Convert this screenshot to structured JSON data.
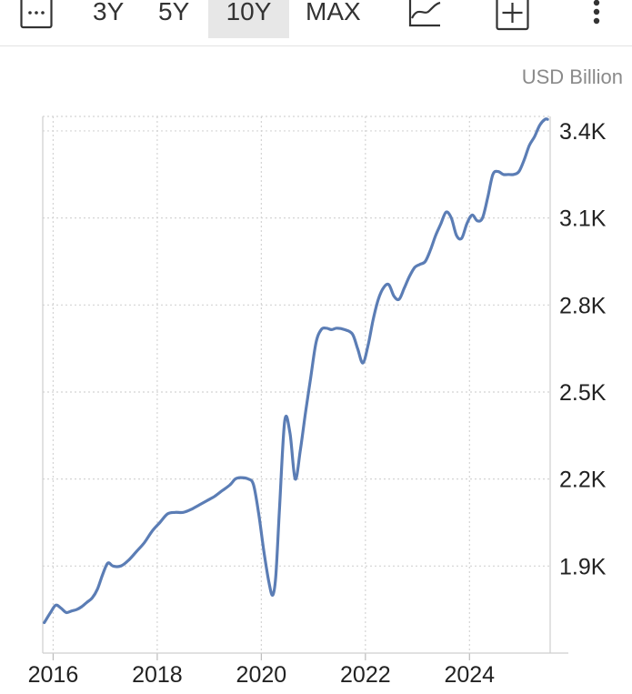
{
  "toolbar": {
    "ranges": [
      {
        "label": "3Y",
        "active": false
      },
      {
        "label": "5Y",
        "active": false
      },
      {
        "label": "10Y",
        "active": true
      },
      {
        "label": "MAX",
        "active": false
      }
    ],
    "icons": [
      "calendar-icon",
      "line-chart-icon",
      "add-icon",
      "more-icon"
    ]
  },
  "chart_data": {
    "type": "line",
    "unit_label": "USD Billion",
    "ylim": [
      1.6,
      3.45
    ],
    "xlim": [
      2015.8,
      2025.55
    ],
    "y_ticks": [
      {
        "value": 1.9,
        "label": "1.9K"
      },
      {
        "value": 2.2,
        "label": "2.2K"
      },
      {
        "value": 2.5,
        "label": "2.5K"
      },
      {
        "value": 2.8,
        "label": "2.8K"
      },
      {
        "value": 3.1,
        "label": "3.1K"
      },
      {
        "value": 3.4,
        "label": "3.4K"
      }
    ],
    "x_ticks": [
      {
        "value": 2016,
        "label": "2016"
      },
      {
        "value": 2018,
        "label": "2018"
      },
      {
        "value": 2020,
        "label": "2020"
      },
      {
        "value": 2022,
        "label": "2022"
      },
      {
        "value": 2024,
        "label": "2024"
      }
    ],
    "grid": true,
    "series": [
      {
        "color": "#5b7db5",
        "x": [
          2015.83,
          2015.95,
          2016.05,
          2016.15,
          2016.25,
          2016.35,
          2016.45,
          2016.55,
          2016.65,
          2016.75,
          2016.85,
          2016.95,
          2017.05,
          2017.15,
          2017.3,
          2017.45,
          2017.6,
          2017.75,
          2017.9,
          2018.05,
          2018.2,
          2018.35,
          2018.5,
          2018.65,
          2018.8,
          2018.95,
          2019.1,
          2019.25,
          2019.4,
          2019.5,
          2019.6,
          2019.75,
          2019.85,
          2019.95,
          2020.05,
          2020.15,
          2020.22,
          2020.28,
          2020.35,
          2020.45,
          2020.55,
          2020.65,
          2020.75,
          2020.85,
          2020.95,
          2021.05,
          2021.15,
          2021.25,
          2021.35,
          2021.45,
          2021.6,
          2021.75,
          2021.85,
          2021.95,
          2022.05,
          2022.15,
          2022.25,
          2022.35,
          2022.45,
          2022.55,
          2022.65,
          2022.75,
          2022.85,
          2022.95,
          2023.05,
          2023.15,
          2023.25,
          2023.35,
          2023.45,
          2023.55,
          2023.65,
          2023.75,
          2023.85,
          2023.95,
          2024.05,
          2024.15,
          2024.25,
          2024.35,
          2024.45,
          2024.55,
          2024.65,
          2024.75,
          2024.85,
          2024.95,
          2025.05,
          2025.15,
          2025.25,
          2025.35,
          2025.45,
          2025.5
        ],
        "y": [
          1.705,
          1.74,
          1.765,
          1.755,
          1.74,
          1.745,
          1.75,
          1.76,
          1.775,
          1.79,
          1.82,
          1.87,
          1.91,
          1.9,
          1.9,
          1.92,
          1.95,
          1.98,
          2.02,
          2.05,
          2.08,
          2.085,
          2.085,
          2.095,
          2.11,
          2.125,
          2.14,
          2.16,
          2.18,
          2.2,
          2.205,
          2.2,
          2.18,
          2.08,
          1.95,
          1.84,
          1.8,
          1.87,
          2.1,
          2.4,
          2.36,
          2.2,
          2.3,
          2.43,
          2.55,
          2.67,
          2.715,
          2.72,
          2.715,
          2.72,
          2.715,
          2.7,
          2.65,
          2.6,
          2.66,
          2.75,
          2.82,
          2.86,
          2.87,
          2.83,
          2.82,
          2.86,
          2.9,
          2.93,
          2.94,
          2.95,
          2.99,
          3.04,
          3.08,
          3.12,
          3.1,
          3.04,
          3.03,
          3.08,
          3.11,
          3.09,
          3.1,
          3.17,
          3.25,
          3.26,
          3.25,
          3.25,
          3.25,
          3.26,
          3.3,
          3.35,
          3.38,
          3.42,
          3.44,
          3.44
        ]
      }
    ]
  }
}
